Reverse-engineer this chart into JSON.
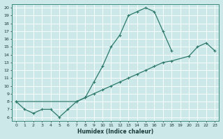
{
  "title": "",
  "xlabel": "Humidex (Indice chaleur)",
  "bg_color": "#cce8e8",
  "line_color": "#2d7a6a",
  "grid_color": "#b0d8d8",
  "xlim": [
    -0.5,
    23.5
  ],
  "ylim": [
    5.5,
    20.5
  ],
  "xticks": [
    0,
    1,
    2,
    3,
    4,
    5,
    6,
    7,
    8,
    9,
    10,
    11,
    12,
    13,
    14,
    15,
    16,
    17,
    18,
    19,
    20,
    21,
    22,
    23
  ],
  "yticks": [
    6,
    7,
    8,
    9,
    10,
    11,
    12,
    13,
    14,
    15,
    16,
    17,
    18,
    19,
    20
  ],
  "curve1_x": [
    0,
    1,
    2,
    3,
    4,
    5,
    6,
    7,
    8,
    9,
    10,
    11,
    12,
    13,
    14,
    15,
    16,
    17,
    18
  ],
  "curve1_y": [
    8,
    7,
    6.5,
    7,
    7,
    6,
    7,
    8,
    8.5,
    10.5,
    12.5,
    15,
    16.5,
    19,
    19.5,
    20,
    19.5,
    17,
    14.5
  ],
  "curve2_x": [
    0,
    7,
    8,
    9,
    10,
    11,
    12,
    13,
    14,
    15,
    16,
    17,
    18,
    20,
    21,
    22,
    23
  ],
  "curve2_y": [
    8,
    8,
    8.5,
    9,
    9.5,
    10,
    10.5,
    11,
    11.5,
    12,
    12.5,
    13,
    13.2,
    13.8,
    15,
    15.5,
    14.5
  ]
}
